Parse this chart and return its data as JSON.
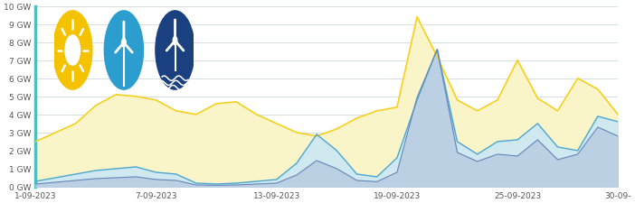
{
  "ylim": [
    0,
    10
  ],
  "yticks": [
    0,
    1,
    2,
    3,
    4,
    5,
    6,
    7,
    8,
    9,
    10
  ],
  "ytick_labels": [
    "0 GW",
    "1 GW",
    "2 GW",
    "3 GW",
    "4 GW",
    "5 GW",
    "6 GW",
    "7 GW",
    "8 GW",
    "9 GW",
    "10 GW"
  ],
  "xtick_positions": [
    1,
    7,
    13,
    19,
    25,
    30
  ],
  "xtick_labels": [
    "1-09-2023",
    "7-09-2023",
    "13-09-2023",
    "19-09-2023",
    "25-09-2023",
    "30-09-"
  ],
  "background_color": "#ffffff",
  "icon_bg_color": "#e8f0f5",
  "grid_color": "#d0d8e0",
  "solar_line_color": "#f5d020",
  "solar_fill_color": "#faf5c8",
  "wind_land_line_color": "#4da6d0",
  "wind_land_fill_color": "#cce8f5",
  "wind_sea_line_color": "#6688bb",
  "wind_sea_fill_color": "#b8cce0",
  "left_spine_color": "#4dbfbf",
  "days": [
    1,
    2,
    3,
    4,
    5,
    6,
    7,
    8,
    9,
    10,
    11,
    12,
    13,
    14,
    15,
    16,
    17,
    18,
    19,
    20,
    21,
    22,
    23,
    24,
    25,
    26,
    27,
    28,
    29,
    30
  ],
  "solar": [
    2.5,
    3.0,
    3.5,
    4.5,
    5.1,
    5.0,
    4.8,
    4.2,
    4.0,
    4.6,
    4.7,
    4.0,
    3.5,
    3.0,
    2.8,
    3.2,
    3.8,
    4.2,
    4.4,
    9.4,
    7.2,
    4.8,
    4.2,
    4.8,
    7.0,
    4.9,
    4.2,
    6.0,
    5.4,
    4.0
  ],
  "wind_land": [
    0.3,
    0.5,
    0.7,
    0.9,
    1.0,
    1.1,
    0.8,
    0.7,
    0.2,
    0.15,
    0.2,
    0.3,
    0.4,
    1.3,
    2.9,
    2.0,
    0.7,
    0.55,
    1.6,
    4.8,
    7.6,
    2.5,
    1.8,
    2.5,
    2.6,
    3.5,
    2.2,
    2.0,
    3.9,
    3.6
  ],
  "wind_sea": [
    0.15,
    0.25,
    0.35,
    0.45,
    0.5,
    0.55,
    0.4,
    0.35,
    0.1,
    0.08,
    0.1,
    0.15,
    0.2,
    0.65,
    1.45,
    1.0,
    0.35,
    0.28,
    0.8,
    4.95,
    7.6,
    1.9,
    1.4,
    1.8,
    1.7,
    2.6,
    1.5,
    1.8,
    3.3,
    2.8
  ],
  "icon_solar_color": "#f5c200",
  "icon_wind_land_color": "#2b9ecf",
  "icon_wind_sea_color": "#1a4080"
}
